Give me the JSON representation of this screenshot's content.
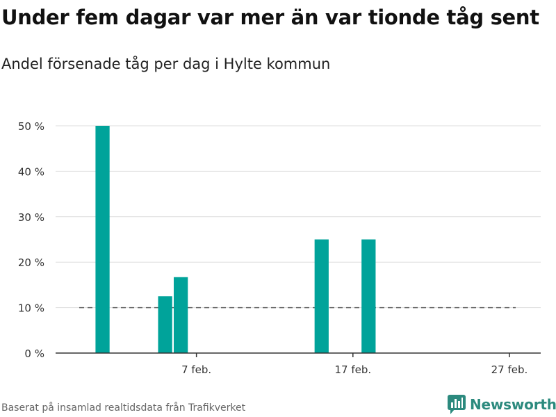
{
  "title": "Under fem dagar var mer än var tionde tåg sent",
  "subtitle": "Andel försenade tåg per dag i Hylte kommun",
  "source": "Baserat på insamlad realtidsdata från Trafikverket",
  "brand": {
    "name": "Newsworthy",
    "icon": "bar-chart-logo-icon",
    "color": "#2c8a7e"
  },
  "chart_data": {
    "type": "bar",
    "x": [
      "2022-02-01",
      "2022-02-05",
      "2022-02-06",
      "2022-02-15",
      "2022-02-18"
    ],
    "values": [
      50,
      12.5,
      16.7,
      25,
      25
    ],
    "xlabel": "",
    "ylabel": "",
    "ylim": [
      0,
      50
    ],
    "yticks": [
      0,
      10,
      20,
      30,
      40,
      50
    ],
    "ytick_labels": [
      "0 %",
      "10 %",
      "20 %",
      "30 %",
      "40 %",
      "50 %"
    ],
    "xticks": [
      "2022-02-07",
      "2022-02-17",
      "2022-02-27"
    ],
    "xtick_labels": [
      "7 feb.",
      "17 feb.",
      "27 feb."
    ],
    "xlim": [
      "2022-01-29",
      "2022-03-01"
    ],
    "reference_line": {
      "value": 10,
      "style": "dashed"
    },
    "bar_color": "#00a39a",
    "grid": true
  }
}
